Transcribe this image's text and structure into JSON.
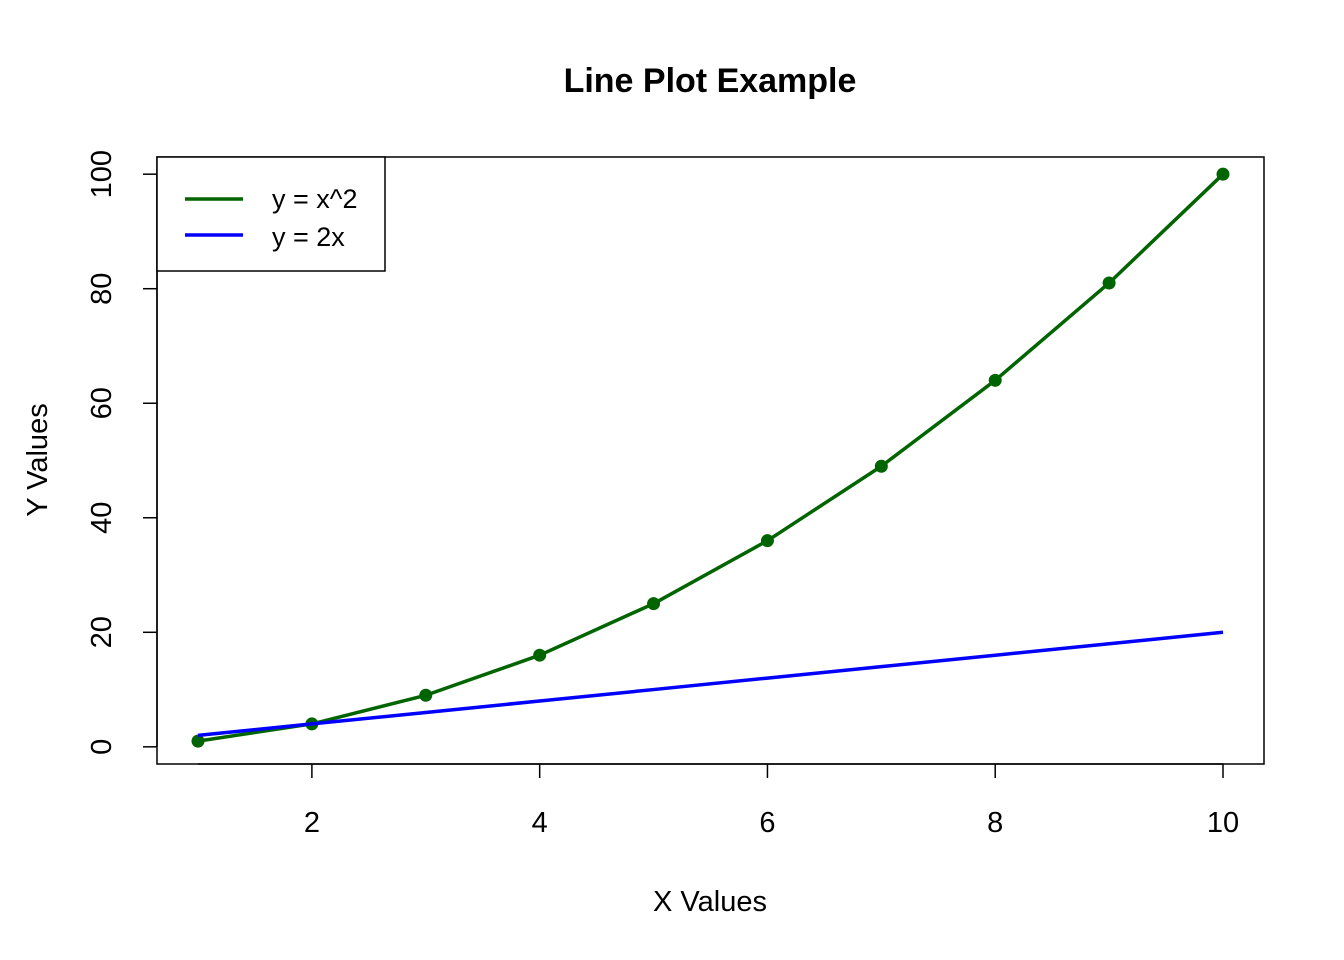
{
  "chart_data": {
    "type": "line",
    "title": "Line Plot Example",
    "xlabel": "X Values",
    "ylabel": "Y Values",
    "xlim": [
      0.64,
      10.36
    ],
    "ylim": [
      -3,
      103
    ],
    "xticks": [
      2,
      4,
      6,
      8,
      10
    ],
    "yticks": [
      0,
      20,
      40,
      60,
      80,
      100
    ],
    "xtick_labels": [
      "2",
      "4",
      "6",
      "8",
      "10"
    ],
    "ytick_labels": [
      "0",
      "20",
      "40",
      "60",
      "80",
      "100"
    ],
    "grid": false,
    "legend_position": "top-left",
    "x": [
      1,
      2,
      3,
      4,
      5,
      6,
      7,
      8,
      9,
      10
    ],
    "series": [
      {
        "name": "y = x^2",
        "color": "#006400",
        "markers": true,
        "values": [
          1,
          4,
          9,
          16,
          25,
          36,
          49,
          64,
          81,
          100
        ]
      },
      {
        "name": "y = 2x",
        "color": "#0000FF",
        "markers": false,
        "values": [
          2,
          4,
          6,
          8,
          10,
          12,
          14,
          16,
          18,
          20
        ]
      }
    ]
  }
}
